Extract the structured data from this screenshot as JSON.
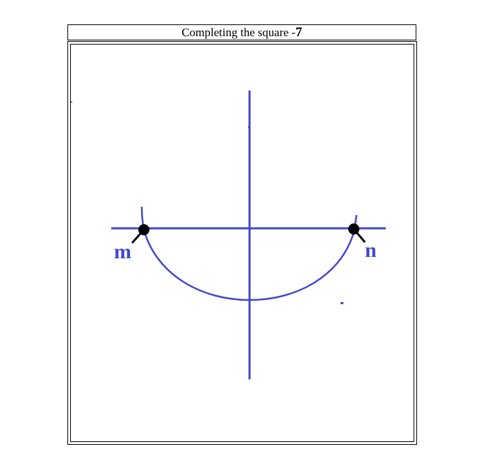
{
  "title": {
    "text": "Completing the square -",
    "number": "7"
  },
  "diagram": {
    "points": [
      {
        "id": "m",
        "label": "m"
      },
      {
        "id": "n",
        "label": "n"
      }
    ]
  },
  "colors": {
    "curve": "#3f48cc",
    "axis": "#3f48cc",
    "point": "#000000",
    "label": "#3f48cc",
    "frame": "#000000"
  }
}
